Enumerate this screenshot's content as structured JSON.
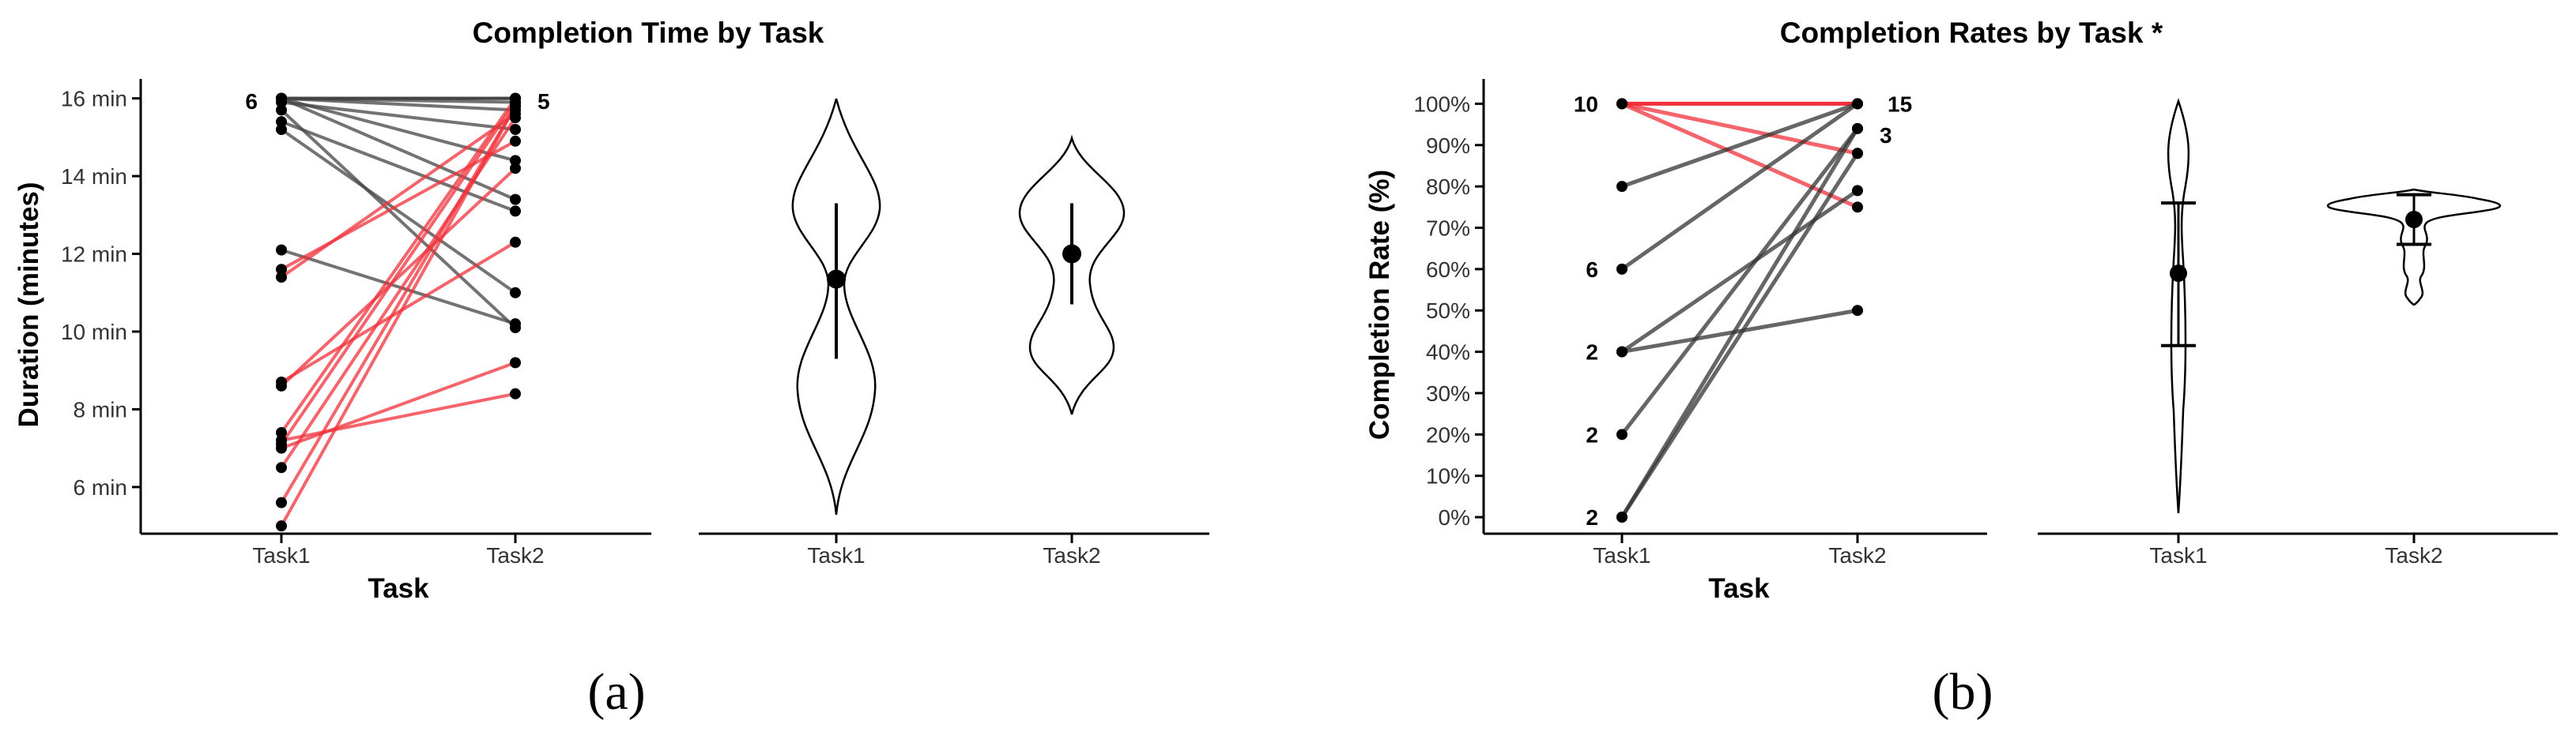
{
  "chart_data": [
    {
      "type": "line",
      "title": "Completion Time by Task",
      "xlabel": "Task",
      "ylabel": "Duration (minutes)",
      "caption": "(a)",
      "categories": [
        "Task1",
        "Task2"
      ],
      "yticks": [
        "6 min",
        "8 min",
        "10 min",
        "12 min",
        "14 min",
        "16 min"
      ],
      "ylim": [
        4.8,
        16.5
      ],
      "tick_values": [
        6,
        8,
        10,
        12,
        14,
        16
      ],
      "colors": {
        "decrease": "#444444",
        "increase": "#f0303a"
      },
      "pairs": [
        [
          16,
          16
        ],
        [
          16,
          16
        ],
        [
          16,
          15.9
        ],
        [
          16,
          15.7
        ],
        [
          16,
          14.4
        ],
        [
          16,
          13.4
        ],
        [
          15.9,
          15.2
        ],
        [
          15.7,
          10.1
        ],
        [
          15.4,
          13.1
        ],
        [
          15.2,
          11
        ],
        [
          12.1,
          10.2
        ],
        [
          11.6,
          14.9
        ],
        [
          11.4,
          15.6
        ],
        [
          8.7,
          12.3
        ],
        [
          8.6,
          14.2
        ],
        [
          7.4,
          16
        ],
        [
          7.2,
          8.4
        ],
        [
          7.1,
          15.9
        ],
        [
          7,
          9.2
        ],
        [
          6.5,
          15.5
        ],
        [
          5.6,
          15.8
        ],
        [
          5,
          15.8
        ]
      ],
      "end_labels": {
        "task1_top": "6",
        "task2_top": "5"
      },
      "violin": {
        "task1": {
          "mean": 11.35,
          "low": 9.3,
          "high": 13.3
        },
        "task2": {
          "mean": 12.0,
          "low": 10.7,
          "high": 13.3
        }
      }
    },
    {
      "type": "line",
      "title": "Completion Rates by Task *",
      "xlabel": "Task",
      "ylabel": "Completion Rate (%)",
      "caption": "(b)",
      "categories": [
        "Task1",
        "Task2"
      ],
      "yticks": [
        "0%",
        "10%",
        "20%",
        "30%",
        "40%",
        "50%",
        "60%",
        "70%",
        "80%",
        "90%",
        "100%"
      ],
      "ylim": [
        -4,
        106
      ],
      "tick_values": [
        0,
        10,
        20,
        30,
        40,
        50,
        60,
        70,
        80,
        90,
        100
      ],
      "colors": {
        "decrease": "#f0303a",
        "increase": "#333333"
      },
      "pairs": [
        [
          100,
          100
        ],
        [
          100,
          88
        ],
        [
          100,
          75
        ],
        [
          80,
          100
        ],
        [
          60,
          100
        ],
        [
          40,
          79
        ],
        [
          40,
          50
        ],
        [
          20,
          94
        ],
        [
          0,
          94
        ],
        [
          0,
          88
        ]
      ],
      "task1_labels": [
        {
          "y": 100,
          "text": "10"
        },
        {
          "y": 60,
          "text": "6"
        },
        {
          "y": 40,
          "text": "2"
        },
        {
          "y": 20,
          "text": "2"
        },
        {
          "y": 0,
          "text": "2"
        }
      ],
      "task2_labels": [
        {
          "y": 100,
          "text": "15"
        },
        {
          "y": 94,
          "text": "3"
        }
      ],
      "violin": {
        "task1": {
          "mean": 59,
          "q_low": 41.5,
          "q_high": 76
        },
        "task2": {
          "mean": 72,
          "q_low": 66,
          "q_high": 78
        }
      }
    }
  ]
}
